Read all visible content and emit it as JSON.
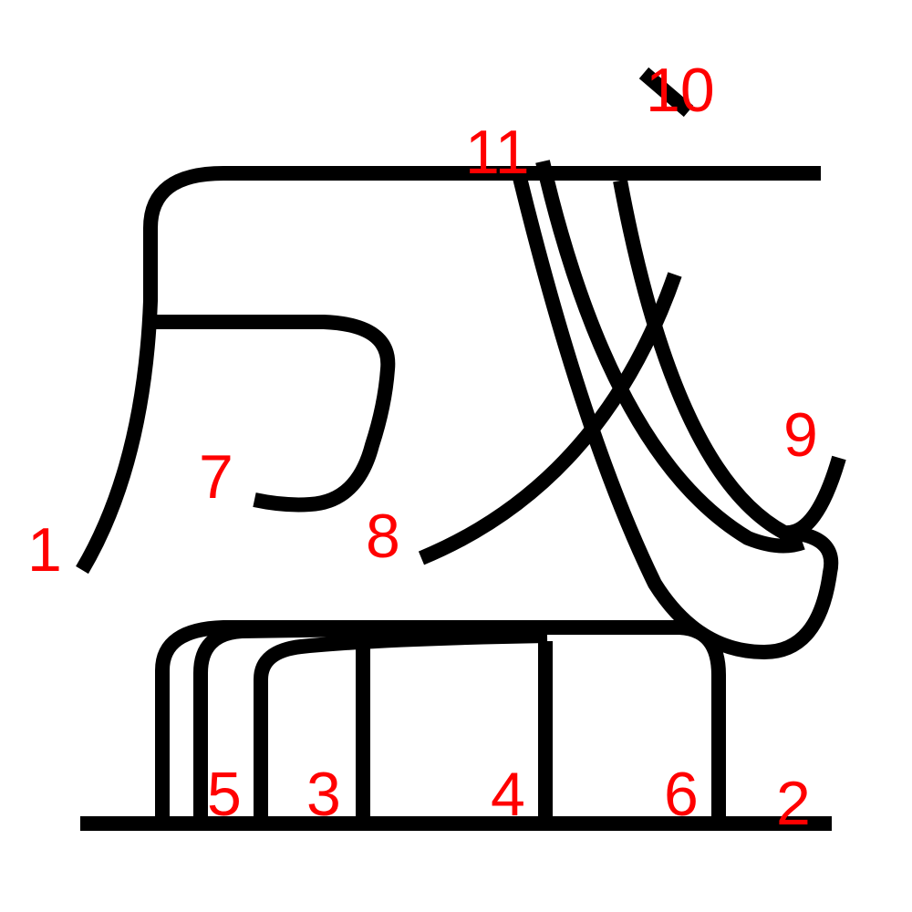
{
  "strokes": [
    {
      "id": "1",
      "label": "1"
    },
    {
      "id": "2",
      "label": "2"
    },
    {
      "id": "3",
      "label": "3"
    },
    {
      "id": "4",
      "label": "4"
    },
    {
      "id": "5",
      "label": "5"
    },
    {
      "id": "6",
      "label": "6"
    },
    {
      "id": "7",
      "label": "7"
    },
    {
      "id": "8",
      "label": "8"
    },
    {
      "id": "9",
      "label": "9"
    },
    {
      "id": "10",
      "label": "10"
    },
    {
      "id": "11",
      "label": "11"
    }
  ],
  "colors": {
    "stroke": "#000000",
    "label": "#ff0000",
    "background": "#ffffff"
  }
}
